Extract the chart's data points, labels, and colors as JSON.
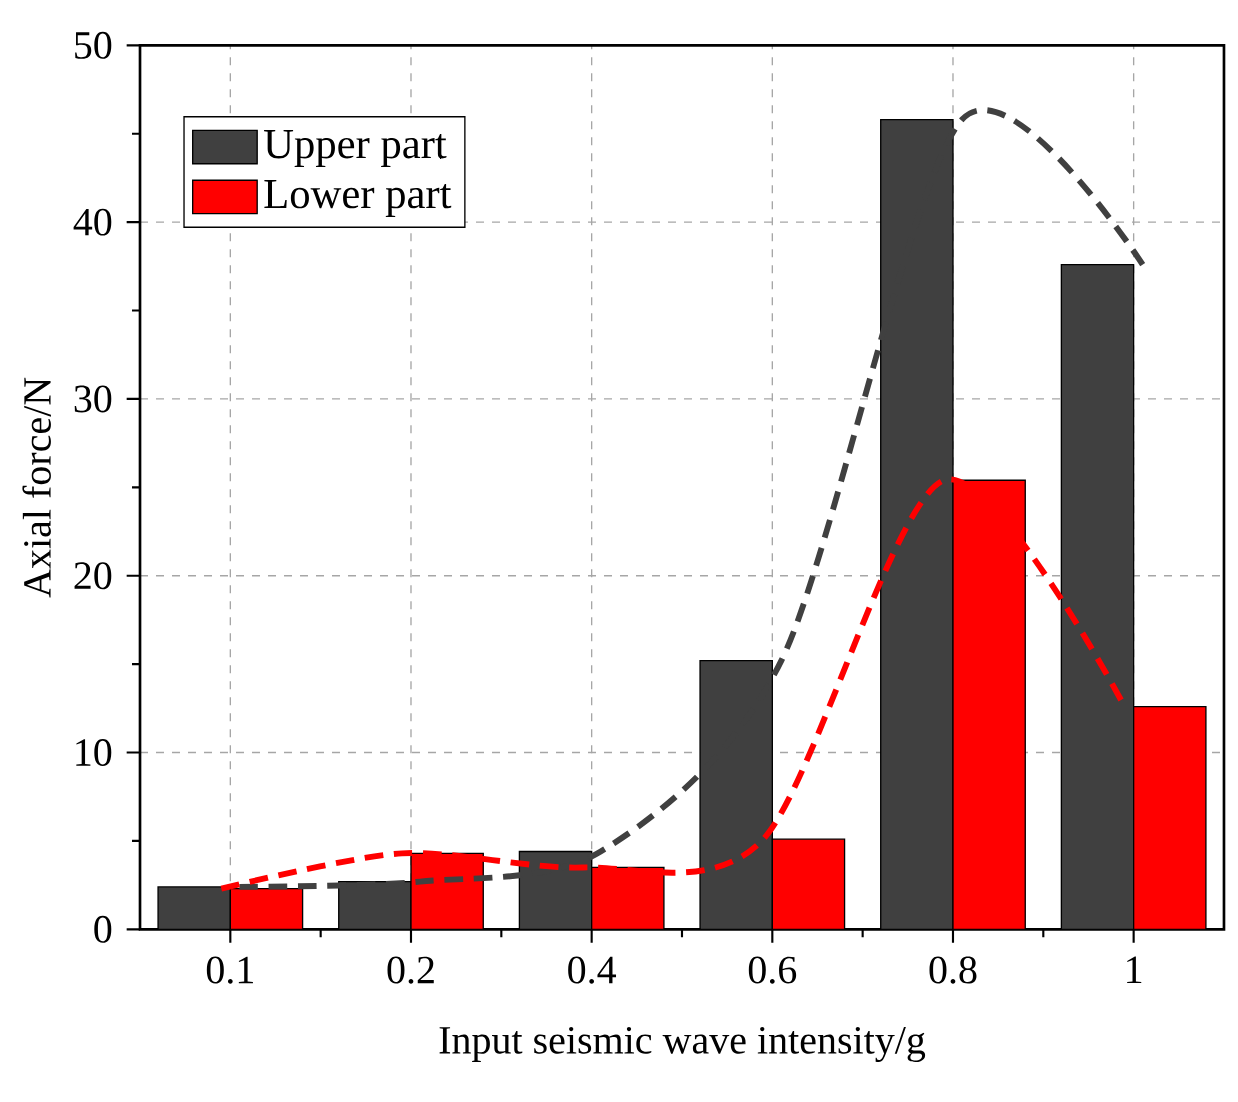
{
  "chart_data": {
    "type": "bar",
    "xlabel": "Input seismic wave intensity/g",
    "ylabel": "Axial force/N",
    "categories": [
      "0.1",
      "0.2",
      "0.4",
      "0.6",
      "0.8",
      "1"
    ],
    "series": [
      {
        "name": "Upper part",
        "color": "#404040",
        "values": [
          2.4,
          2.7,
          4.4,
          15.2,
          45.8,
          37.6
        ]
      },
      {
        "name": "Lower part",
        "color": "#ff0000",
        "values": [
          2.3,
          4.3,
          3.5,
          5.1,
          25.4,
          12.6
        ]
      },
      {
        "type": "line",
        "color": "#404040",
        "line_style": "dashed",
        "values": [
          2.4,
          2.7,
          4.4,
          15.2,
          45.8,
          37.6
        ]
      },
      {
        "type": "line",
        "color": "#ff0000",
        "line_style": "dashed",
        "values": [
          2.3,
          4.3,
          3.5,
          5.1,
          25.4,
          12.6
        ]
      }
    ],
    "ylim": [
      0,
      50
    ],
    "yticks": [
      0,
      10,
      20,
      30,
      40,
      50
    ],
    "grid": true,
    "legend": "top left"
  }
}
